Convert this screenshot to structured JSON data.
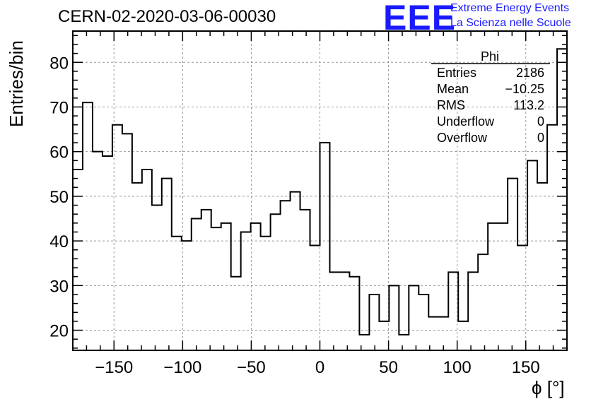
{
  "header": {
    "run_title": "CERN-02-2020-03-06-00030",
    "logo_text": "EEE",
    "logo_line1": "Extreme Energy Events",
    "logo_line2": "La Scienza nelle Scuole",
    "logo_color": "#1a1aff"
  },
  "stats": {
    "name": "Phi",
    "rows": [
      {
        "label": "Entries",
        "value": "2186"
      },
      {
        "label": "Mean",
        "value": "−10.25"
      },
      {
        "label": "RMS",
        "value": "113.2"
      },
      {
        "label": "Underflow",
        "value": "0"
      },
      {
        "label": "Overflow",
        "value": "0"
      }
    ]
  },
  "chart_data": {
    "type": "bar",
    "style": "step-histogram",
    "xlabel": "ϕ [°]",
    "ylabel": "Entries/bin",
    "xlim": [
      -180,
      180
    ],
    "ylim": [
      15.5,
      87
    ],
    "bin_width": 7.2,
    "x_ticks": [
      -150,
      -100,
      -50,
      0,
      50,
      100,
      150
    ],
    "x_tick_labels": [
      "−150",
      "−100",
      "−50",
      "0",
      "50",
      "100",
      "150"
    ],
    "y_ticks": [
      20,
      30,
      40,
      50,
      60,
      70,
      80
    ],
    "y_tick_labels": [
      "20",
      "30",
      "40",
      "50",
      "60",
      "70",
      "80"
    ],
    "grid": true,
    "line_color": "#000000",
    "values": [
      56,
      71,
      60,
      59,
      66,
      64,
      53,
      56,
      48,
      54,
      41,
      40,
      45,
      47,
      43,
      44,
      32,
      42,
      44,
      41,
      46,
      49,
      51,
      47,
      39,
      62,
      33,
      33,
      32,
      19,
      28,
      22,
      30,
      19,
      30,
      28,
      23,
      23,
      33,
      22,
      33,
      37,
      44,
      44,
      54,
      39,
      58,
      53,
      66,
      83
    ]
  }
}
